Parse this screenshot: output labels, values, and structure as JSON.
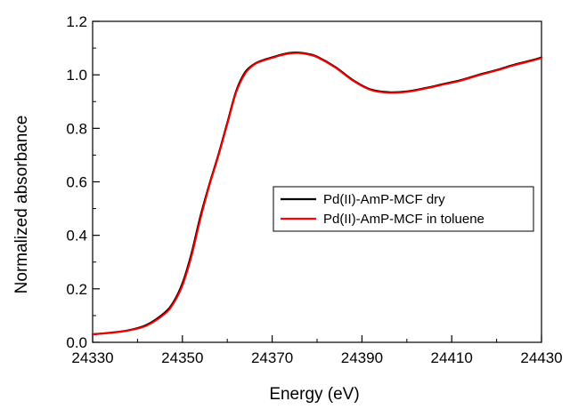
{
  "chart_data": {
    "type": "line",
    "title": "",
    "xlabel": "Energy (eV)",
    "ylabel": "Normalized absorbance",
    "xlim": [
      24330,
      24430
    ],
    "ylim": [
      0.0,
      1.2
    ],
    "x_ticks": [
      24330,
      24350,
      24370,
      24390,
      24410,
      24430
    ],
    "x_tick_labels": [
      "24330",
      "24350",
      "24370",
      "24390",
      "24410",
      "24430"
    ],
    "y_ticks": [
      0.0,
      0.2,
      0.4,
      0.6,
      0.8,
      1.0,
      1.2
    ],
    "y_tick_labels": [
      "0.0",
      "0.2",
      "0.4",
      "0.6",
      "0.8",
      "1.0",
      "1.2"
    ],
    "grid": false,
    "legend_position": "center-right",
    "colors": {
      "dry": "#000000",
      "toluene": "#ff0000"
    },
    "x": [
      24330,
      24334,
      24338,
      24342,
      24346,
      24348,
      24350,
      24352,
      24354,
      24356,
      24358,
      24360,
      24362,
      24364,
      24366,
      24368,
      24370,
      24372,
      24374,
      24376,
      24378,
      24380,
      24384,
      24388,
      24392,
      24396,
      24400,
      24404,
      24408,
      24412,
      24416,
      24420,
      24424,
      24428,
      24430
    ],
    "series": [
      {
        "name": "Pd(II)-AmP-MCF dry",
        "values": [
          0.03,
          0.036,
          0.045,
          0.065,
          0.11,
          0.15,
          0.22,
          0.33,
          0.47,
          0.59,
          0.7,
          0.82,
          0.94,
          1.01,
          1.04,
          1.055,
          1.065,
          1.075,
          1.082,
          1.083,
          1.078,
          1.068,
          1.03,
          0.98,
          0.945,
          0.935,
          0.938,
          0.95,
          0.965,
          0.98,
          1.0,
          1.018,
          1.038,
          1.055,
          1.065
        ]
      },
      {
        "name": "Pd(II)-AmP-MCF in toluene",
        "values": [
          0.03,
          0.035,
          0.044,
          0.062,
          0.105,
          0.145,
          0.212,
          0.32,
          0.46,
          0.585,
          0.695,
          0.815,
          0.935,
          1.005,
          1.038,
          1.053,
          1.063,
          1.073,
          1.08,
          1.081,
          1.076,
          1.066,
          1.028,
          0.978,
          0.943,
          0.933,
          0.936,
          0.948,
          0.963,
          0.978,
          0.998,
          1.016,
          1.036,
          1.053,
          1.063
        ]
      }
    ]
  }
}
